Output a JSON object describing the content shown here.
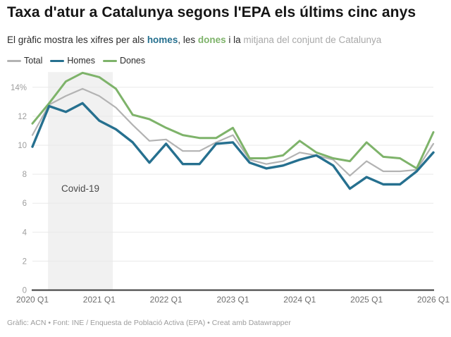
{
  "header": {
    "title": "Taxa d'atur a Catalunya segons l'EPA els últims cinc anys",
    "subtitle_prefix": "El gràfic mostra les xifres per als ",
    "subtitle_homes": "homes",
    "subtitle_mid1": ", les ",
    "subtitle_dones": "dones",
    "subtitle_mid2": " i la ",
    "subtitle_mitjana": "mitjana del conjunt de Catalunya"
  },
  "legend": {
    "total_label": "Total",
    "homes_label": "Homes",
    "dones_label": "Dones"
  },
  "colors": {
    "total": "#b3b3b3",
    "homes": "#26708f",
    "dones": "#7eb36a",
    "gridline": "#e9e9e9",
    "axis_baseline": "#3a3a3a",
    "y_tick_text": "#9e9e9e",
    "x_tick_text": "#6f6f6f",
    "annotation_band": "#f1f1f1",
    "annotation_text": "#4a4a4a"
  },
  "chart_data": {
    "type": "line",
    "title": "Taxa d'atur a Catalunya segons l'EPA els últims cinc anys",
    "x_unit": "quarter",
    "x_range": [
      "2020 Q1",
      "2026 Q1"
    ],
    "ylim": [
      0,
      15.3
    ],
    "grid": "horizontal",
    "legend_position": "top-left",
    "y_ticks": [
      {
        "value": 0,
        "label": "0"
      },
      {
        "value": 2,
        "label": "2"
      },
      {
        "value": 4,
        "label": "4"
      },
      {
        "value": 6,
        "label": "6"
      },
      {
        "value": 8,
        "label": "8"
      },
      {
        "value": 10,
        "label": "10"
      },
      {
        "value": 12,
        "label": "12"
      },
      {
        "value": 14,
        "label": "14%"
      }
    ],
    "x_ticks": [
      {
        "index": 0,
        "label": "2020 Q1"
      },
      {
        "index": 4,
        "label": "2021 Q1"
      },
      {
        "index": 8,
        "label": "2022 Q1"
      },
      {
        "index": 12,
        "label": "2023 Q1"
      },
      {
        "index": 16,
        "label": "2024 Q1"
      },
      {
        "index": 20,
        "label": "2025 Q1"
      },
      {
        "index": 24,
        "label": "2026 Q1"
      }
    ],
    "quarters": [
      "2020 Q1",
      "2020 Q2",
      "2020 Q3",
      "2020 Q4",
      "2021 Q1",
      "2021 Q2",
      "2021 Q3",
      "2021 Q4",
      "2022 Q1",
      "2022 Q2",
      "2022 Q3",
      "2022 Q4",
      "2023 Q1",
      "2023 Q2",
      "2023 Q3",
      "2023 Q4",
      "2024 Q1",
      "2024 Q2",
      "2024 Q3",
      "2024 Q4",
      "2025 Q1",
      "2025 Q2",
      "2025 Q3",
      "2025 Q4",
      "2026 Q1"
    ],
    "series": [
      {
        "name": "Total",
        "color": "#b3b3b3",
        "width": 2.2,
        "values": [
          10.7,
          12.8,
          13.4,
          13.9,
          13.4,
          12.6,
          11.4,
          10.3,
          10.4,
          9.6,
          9.6,
          10.2,
          10.7,
          9.0,
          8.7,
          8.9,
          9.5,
          9.3,
          9.0,
          7.9,
          8.9,
          8.2,
          8.2,
          8.3,
          10.1
        ]
      },
      {
        "name": "Dones",
        "color": "#7eb36a",
        "width": 3,
        "values": [
          11.5,
          12.9,
          14.4,
          15.0,
          14.7,
          13.9,
          12.1,
          11.8,
          11.2,
          10.7,
          10.5,
          10.5,
          11.2,
          9.1,
          9.1,
          9.3,
          10.3,
          9.5,
          9.1,
          8.9,
          10.2,
          9.2,
          9.1,
          8.4,
          10.9
        ]
      },
      {
        "name": "Homes",
        "color": "#26708f",
        "width": 3.4,
        "values": [
          9.9,
          12.7,
          12.3,
          12.9,
          11.7,
          11.1,
          10.2,
          8.8,
          10.1,
          8.7,
          8.7,
          10.1,
          10.2,
          8.8,
          8.4,
          8.6,
          9.0,
          9.3,
          8.6,
          7.0,
          7.8,
          7.3,
          7.3,
          8.2,
          9.5
        ]
      }
    ],
    "annotation": {
      "label": "Covid-19",
      "x_start_index": 0.93,
      "x_end_index": 4.81,
      "top_value": 15.05
    }
  },
  "footer": {
    "credit": "Gràfic: ACN • Font: INE / Enquesta de Població Activa (EPA) • Creat amb Datawrapper"
  }
}
